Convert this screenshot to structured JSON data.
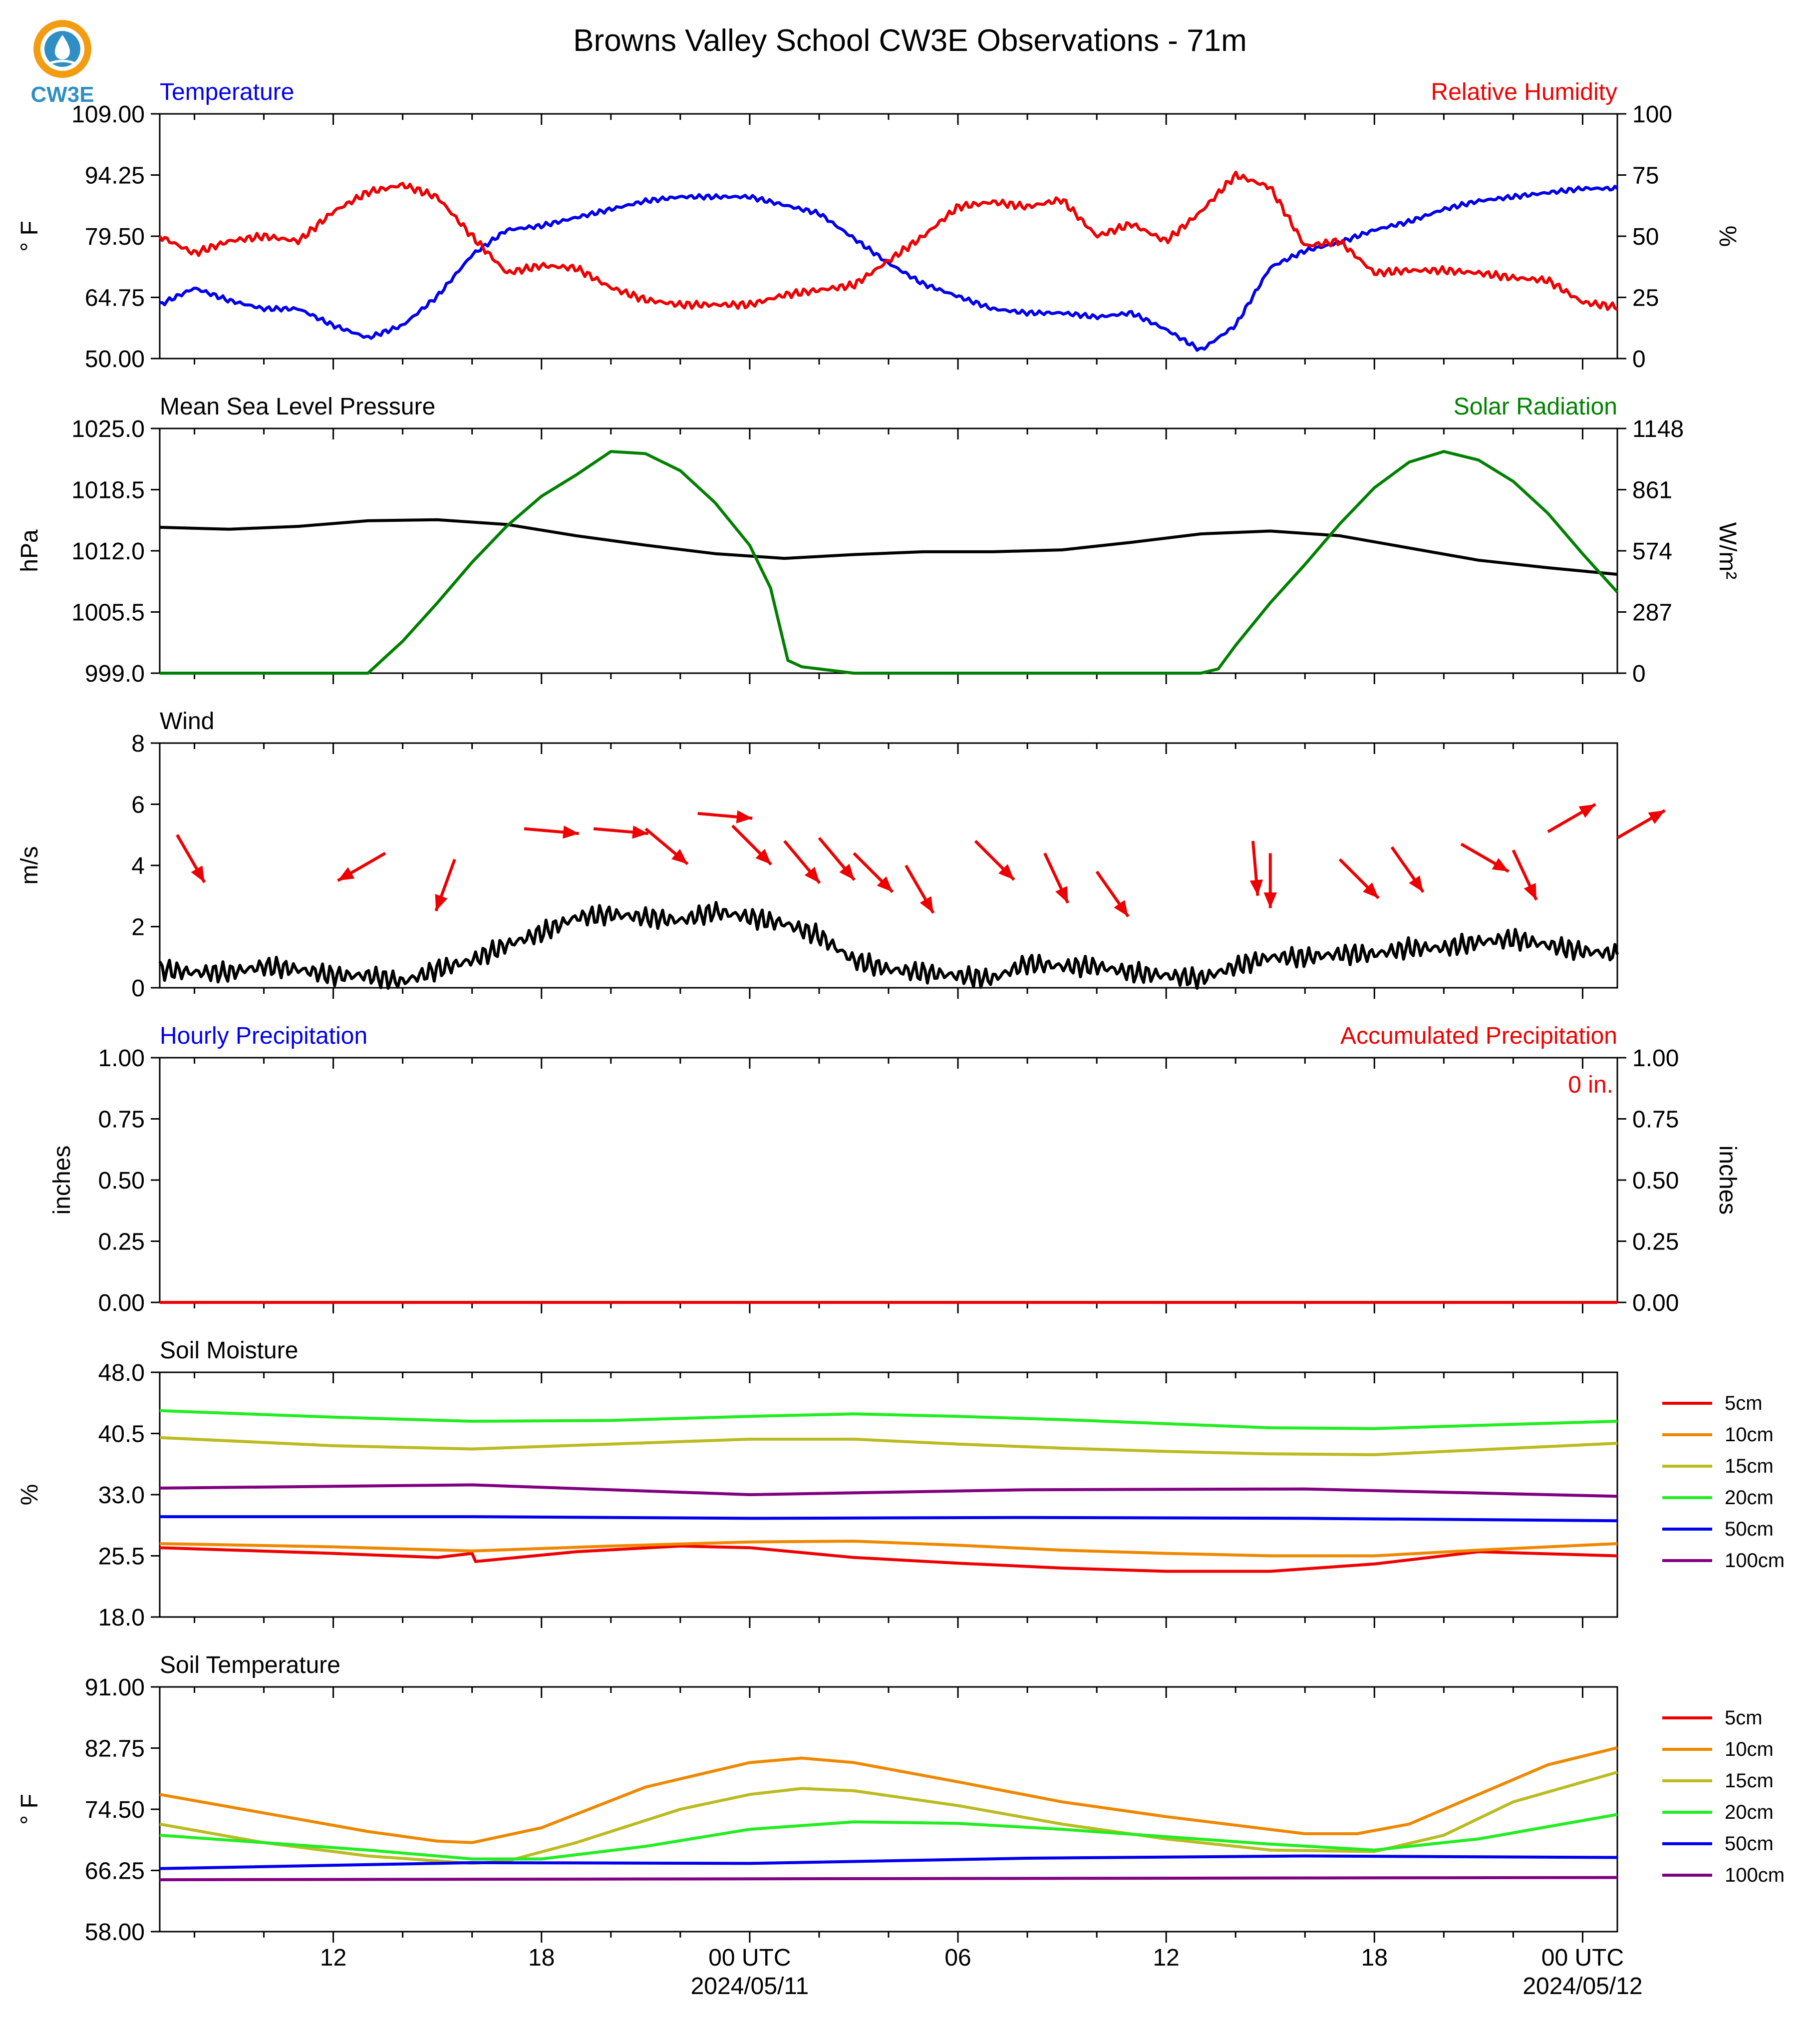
{
  "page_title": "Browns Valley School CW3E Observations - 71m",
  "logo": {
    "text": "CW3E",
    "icon": "cw3e-water-drop-logo-icon"
  },
  "colors": {
    "blue": "#0000ee",
    "red": "#ee0000",
    "green": "#008000",
    "black": "#000000"
  },
  "time_axis": {
    "tick_labels": [
      "12",
      "18",
      "00 UTC",
      "06",
      "12",
      "18",
      "00 UTC"
    ],
    "date_labels": [
      "2024/05/11",
      "2024/05/12"
    ],
    "range_hours": [
      -17,
      25
    ]
  },
  "chart_data": [
    {
      "type": "line",
      "left_title": "Temperature",
      "right_title": "Relative Humidity",
      "ylabel": "° F",
      "ylabel_right": "%",
      "ylim": [
        50,
        109
      ],
      "ylim_right": [
        0,
        100
      ],
      "yticks": [
        "109.00",
        "94.25",
        "79.50",
        "64.75",
        "50.00"
      ],
      "yticks_right": [
        "100",
        "75",
        "50",
        "25",
        "0"
      ],
      "series": [
        {
          "axis": "left",
          "color": "#0000ee",
          "x": [
            -17,
            -16,
            -15,
            -14,
            -13,
            -12,
            -11,
            -10,
            -9,
            -8,
            -7,
            -6,
            -5,
            -4,
            -3,
            -2,
            -1,
            0,
            1,
            2,
            3,
            4,
            5,
            6,
            7,
            8,
            9,
            10,
            11,
            12,
            13,
            14,
            15,
            16,
            17,
            18,
            19,
            20,
            21,
            22,
            23,
            24,
            25
          ],
          "values": [
            63,
            67,
            64,
            62,
            62,
            58,
            55,
            58,
            65,
            75,
            81,
            82,
            84,
            86,
            88,
            89,
            89,
            89,
            87,
            85,
            79,
            73,
            68,
            65,
            62,
            61,
            61,
            60,
            61,
            57,
            52,
            58,
            72,
            76,
            78,
            81,
            83,
            86,
            88,
            89,
            90,
            91,
            91
          ]
        },
        {
          "axis": "right",
          "color": "#ee0000",
          "x": [
            -17,
            -16,
            -15,
            -14,
            -13,
            -12,
            -11,
            -10,
            -9,
            -8,
            -7,
            -6,
            -5,
            -4,
            -3,
            -2,
            -1,
            0,
            1,
            2,
            3,
            4,
            5,
            6,
            7,
            8,
            9,
            10,
            11,
            12,
            13,
            14,
            15,
            16,
            17,
            18,
            19,
            20,
            21,
            22,
            23,
            24,
            25
          ],
          "values": [
            50,
            43,
            48,
            50,
            48,
            60,
            68,
            71,
            66,
            50,
            35,
            38,
            37,
            29,
            24,
            22,
            22,
            22,
            26,
            28,
            30,
            40,
            50,
            62,
            64,
            62,
            65,
            50,
            55,
            48,
            60,
            75,
            70,
            46,
            48,
            35,
            36,
            36,
            35,
            33,
            32,
            23,
            21
          ]
        }
      ]
    },
    {
      "type": "line",
      "left_title": "Mean Sea Level Pressure",
      "right_title": "Solar Radiation",
      "ylabel": "hPa",
      "ylabel_right": "W/m²",
      "ylim": [
        999.0,
        1025.0
      ],
      "ylim_right": [
        0,
        1148
      ],
      "yticks": [
        "1025.0",
        "1018.5",
        "1012.0",
        "1005.5",
        "999.0"
      ],
      "yticks_right": [
        "1148",
        "861",
        "574",
        "287",
        "0"
      ],
      "series": [
        {
          "axis": "left",
          "color": "#000000",
          "x": [
            -17,
            -15,
            -13,
            -11,
            -9,
            -7,
            -5,
            -3,
            -1,
            1,
            3,
            5,
            7,
            9,
            11,
            13,
            15,
            17,
            19,
            21,
            23,
            25
          ],
          "values": [
            1014.5,
            1014.3,
            1014.6,
            1015.2,
            1015.3,
            1014.8,
            1013.6,
            1012.6,
            1011.7,
            1011.2,
            1011.6,
            1011.9,
            1011.9,
            1012.1,
            1012.9,
            1013.8,
            1014.1,
            1013.6,
            1012.3,
            1011.0,
            1010.2,
            1009.5
          ]
        },
        {
          "axis": "right",
          "color": "#008000",
          "x": [
            -17,
            -11,
            -10,
            -9,
            -8,
            -7,
            -6,
            -5,
            -4,
            -3,
            -2,
            -1,
            0,
            0.6,
            1.1,
            1.5,
            3,
            13,
            13.5,
            14,
            15,
            16,
            17,
            18,
            19,
            20,
            21,
            22,
            23,
            24,
            25
          ],
          "values": [
            0,
            0,
            150,
            330,
            520,
            690,
            830,
            930,
            1040,
            1030,
            950,
            800,
            600,
            400,
            60,
            30,
            0,
            0,
            20,
            130,
            330,
            510,
            700,
            870,
            990,
            1040,
            1000,
            900,
            750,
            560,
            380
          ]
        }
      ]
    },
    {
      "type": "line",
      "left_title": "Wind",
      "ylabel": "m/s",
      "ylim": [
        0,
        8
      ],
      "yticks": [
        "8",
        "6",
        "4",
        "2",
        "0"
      ],
      "series": [
        {
          "color": "#000000",
          "x": [
            -17,
            -16,
            -15,
            -14,
            -13,
            -12,
            -11,
            -10,
            -9,
            -8,
            -7,
            -6,
            -5,
            -4,
            -3,
            -2,
            -1,
            0,
            1,
            2,
            3,
            4,
            5,
            6,
            7,
            8,
            9,
            10,
            11,
            12,
            13,
            14,
            15,
            16,
            17,
            18,
            19,
            20,
            21,
            22,
            23,
            24,
            25
          ],
          "values": [
            0.6,
            0.5,
            0.5,
            0.7,
            0.6,
            0.4,
            0.4,
            0.2,
            0.6,
            0.9,
            1.4,
            1.8,
            2.3,
            2.4,
            2.3,
            2.2,
            2.5,
            2.3,
            2.1,
            1.7,
            0.9,
            0.6,
            0.5,
            0.4,
            0.3,
            0.8,
            0.7,
            0.7,
            0.5,
            0.4,
            0.3,
            0.7,
            1.0,
            1.0,
            1.1,
            1.1,
            1.3,
            1.3,
            1.5,
            1.6,
            1.4,
            1.2,
            1.1
          ]
        }
      ],
      "arrows": {
        "color": "#ee0000",
        "x": [
          -16.5,
          -10.5,
          -8.5,
          -6.5,
          -4.5,
          -3.0,
          -1.5,
          -0.5,
          1.0,
          2.0,
          3.0,
          4.5,
          6.5,
          8.5,
          10.0,
          14.5,
          15.0,
          17.0,
          18.5,
          20.5,
          22.0,
          23.0,
          25.0
        ],
        "dir": [
          150,
          240,
          200,
          95,
          95,
          130,
          95,
          135,
          140,
          140,
          135,
          150,
          135,
          155,
          145,
          175,
          180,
          135,
          145,
          120,
          155,
          60,
          60
        ],
        "speed": [
          1.8,
          1.5,
          1.6,
          2.0,
          2.3,
          2.6,
          2.5,
          2.4,
          2.2,
          1.7,
          1.5,
          1.4,
          1.6,
          1.5,
          1.2,
          1.6,
          1.5,
          1.6,
          1.4,
          1.8,
          1.9,
          1.9,
          2.0
        ]
      }
    },
    {
      "type": "bar",
      "left_title": "Hourly Precipitation",
      "right_title": "Accumulated Precipitation",
      "annotation": "0 in.",
      "ylabel": "inches",
      "ylabel_right": "inches",
      "ylim": [
        0,
        1
      ],
      "ylim_right": [
        0,
        1
      ],
      "yticks": [
        "1.00",
        "0.75",
        "0.50",
        "0.25",
        "0.00"
      ],
      "yticks_right": [
        "1.00",
        "0.75",
        "0.50",
        "0.25",
        "0.00"
      ],
      "series": [
        {
          "axis": "right",
          "color": "#ee0000",
          "x": [
            -17,
            25
          ],
          "values": [
            0,
            0
          ]
        }
      ]
    },
    {
      "type": "line",
      "left_title": "Soil Moisture",
      "ylabel": "%",
      "ylim": [
        18,
        48
      ],
      "yticks": [
        "48.0",
        "40.5",
        "33.0",
        "25.5",
        "18.0"
      ],
      "legend": [
        "5cm",
        "10cm",
        "15cm",
        "20cm",
        "50cm",
        "100cm"
      ],
      "series": [
        {
          "name": "5cm",
          "color": "#ee0000",
          "x": [
            -17,
            -12,
            -9,
            -8,
            -7.9,
            -5,
            -2,
            0,
            3,
            6,
            9,
            12,
            15,
            18,
            21,
            25
          ],
          "values": [
            26.5,
            25.8,
            25.3,
            25.8,
            24.8,
            26.0,
            26.7,
            26.5,
            25.3,
            24.6,
            24.0,
            23.6,
            23.6,
            24.5,
            26.0,
            25.5
          ]
        },
        {
          "name": "10cm",
          "color": "#ee8800",
          "x": [
            -17,
            -12,
            -8,
            -4,
            0,
            3,
            6,
            9,
            12,
            15,
            18,
            21,
            25
          ],
          "values": [
            27.0,
            26.6,
            26.1,
            26.7,
            27.2,
            27.3,
            26.8,
            26.2,
            25.8,
            25.5,
            25.5,
            26.2,
            27.0
          ]
        },
        {
          "name": "15cm",
          "color": "#bbbb22",
          "x": [
            -17,
            -12,
            -8,
            -4,
            0,
            3,
            6,
            9,
            12,
            15,
            18,
            21,
            25
          ],
          "values": [
            40.0,
            39.0,
            38.6,
            39.2,
            39.8,
            39.8,
            39.2,
            38.7,
            38.3,
            38.0,
            37.9,
            38.5,
            39.3
          ]
        },
        {
          "name": "20cm",
          "color": "#22ee22",
          "x": [
            -17,
            -12,
            -8,
            -4,
            0,
            3,
            6,
            9,
            12,
            15,
            18,
            21,
            25
          ],
          "values": [
            43.3,
            42.5,
            42.0,
            42.1,
            42.6,
            42.9,
            42.6,
            42.2,
            41.7,
            41.2,
            41.1,
            41.5,
            42.0
          ]
        },
        {
          "name": "50cm",
          "color": "#0000ee",
          "x": [
            -17,
            -8,
            0,
            8,
            16,
            25
          ],
          "values": [
            30.3,
            30.3,
            30.1,
            30.2,
            30.1,
            29.8
          ]
        },
        {
          "name": "100cm",
          "color": "#800080",
          "x": [
            -17,
            -8,
            0,
            8,
            16,
            25
          ],
          "values": [
            33.8,
            34.2,
            33.0,
            33.6,
            33.7,
            32.8
          ]
        }
      ]
    },
    {
      "type": "line",
      "left_title": "Soil Temperature",
      "ylabel": "° F",
      "ylim": [
        58,
        91
      ],
      "yticks": [
        "91.00",
        "82.75",
        "74.50",
        "66.25",
        "58.00"
      ],
      "legend": [
        "5cm",
        "10cm",
        "15cm",
        "20cm",
        "50cm",
        "100cm"
      ],
      "series": [
        {
          "name": "10cm",
          "color": "#ee8800",
          "x": [
            -17,
            -14,
            -11,
            -9,
            -8,
            -6,
            -3,
            0,
            1.5,
            3,
            6,
            9,
            12,
            16,
            17.5,
            19,
            21,
            23,
            25
          ],
          "values": [
            76.5,
            74.0,
            71.5,
            70.2,
            70.0,
            72.0,
            77.5,
            80.8,
            81.4,
            80.8,
            78.2,
            75.5,
            73.5,
            71.2,
            71.2,
            72.5,
            76.5,
            80.5,
            82.8
          ]
        },
        {
          "name": "15cm",
          "color": "#bbbb22",
          "x": [
            -17,
            -14,
            -11,
            -8,
            -7,
            -5,
            -2,
            0,
            1.5,
            3,
            6,
            9,
            12,
            15,
            18,
            20,
            22,
            25
          ],
          "values": [
            72.5,
            70.0,
            68.2,
            67.2,
            67.5,
            70.0,
            74.5,
            76.5,
            77.3,
            77.0,
            75.0,
            72.5,
            70.5,
            69.0,
            68.8,
            71.0,
            75.5,
            79.5
          ]
        },
        {
          "name": "20cm",
          "color": "#22ee22",
          "x": [
            -17,
            -14,
            -11,
            -8,
            -6,
            -3,
            0,
            3,
            6,
            9,
            12,
            15,
            18,
            21,
            25
          ],
          "values": [
            71.0,
            70.0,
            69.0,
            67.8,
            67.8,
            69.5,
            71.8,
            72.8,
            72.6,
            71.8,
            70.8,
            69.8,
            69.0,
            70.5,
            73.8
          ]
        },
        {
          "name": "50cm",
          "color": "#0000ee",
          "x": [
            -17,
            -8,
            0,
            8,
            16,
            25
          ],
          "values": [
            66.5,
            67.3,
            67.2,
            67.9,
            68.2,
            68.0
          ]
        },
        {
          "name": "100cm",
          "color": "#800080",
          "x": [
            -17,
            25
          ],
          "values": [
            65.0,
            65.3
          ]
        }
      ]
    }
  ]
}
